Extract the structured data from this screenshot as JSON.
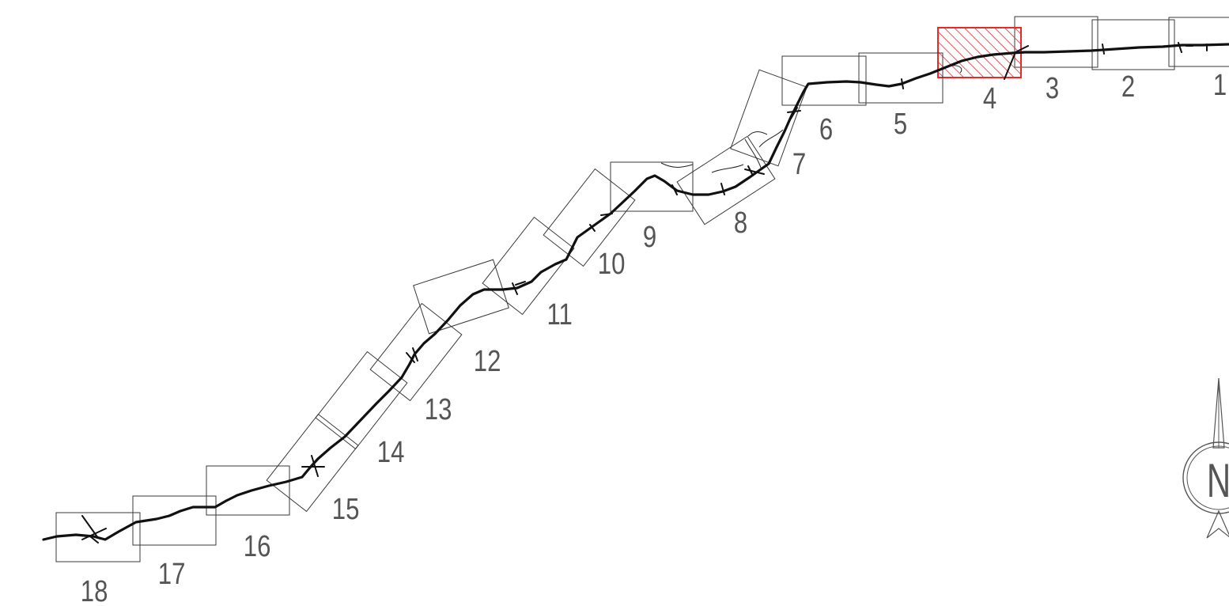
{
  "colors": {
    "sheet_outline": "#3a3a3a",
    "route": "#111111",
    "label": "#555555",
    "highlight": "#e52a2a"
  },
  "sheets": [
    {
      "id": "1",
      "label": "1",
      "highlighted": false
    },
    {
      "id": "2",
      "label": "2",
      "highlighted": false
    },
    {
      "id": "3",
      "label": "3",
      "highlighted": false
    },
    {
      "id": "4",
      "label": "4",
      "highlighted": true
    },
    {
      "id": "5",
      "label": "5",
      "highlighted": false
    },
    {
      "id": "6",
      "label": "6",
      "highlighted": false
    },
    {
      "id": "7",
      "label": "7",
      "highlighted": false
    },
    {
      "id": "8",
      "label": "8",
      "highlighted": false
    },
    {
      "id": "9",
      "label": "9",
      "highlighted": false
    },
    {
      "id": "10",
      "label": "10",
      "highlighted": false
    },
    {
      "id": "11",
      "label": "11",
      "highlighted": false
    },
    {
      "id": "12",
      "label": "12",
      "highlighted": false
    },
    {
      "id": "13",
      "label": "13",
      "highlighted": false
    },
    {
      "id": "14",
      "label": "14",
      "highlighted": false
    },
    {
      "id": "15",
      "label": "15",
      "highlighted": false
    },
    {
      "id": "16",
      "label": "16",
      "highlighted": false
    },
    {
      "id": "17",
      "label": "17",
      "highlighted": false
    },
    {
      "id": "18",
      "label": "18",
      "highlighted": false
    }
  ],
  "north_arrow": {
    "letter": "N",
    "icon": "north-arrow-icon"
  }
}
